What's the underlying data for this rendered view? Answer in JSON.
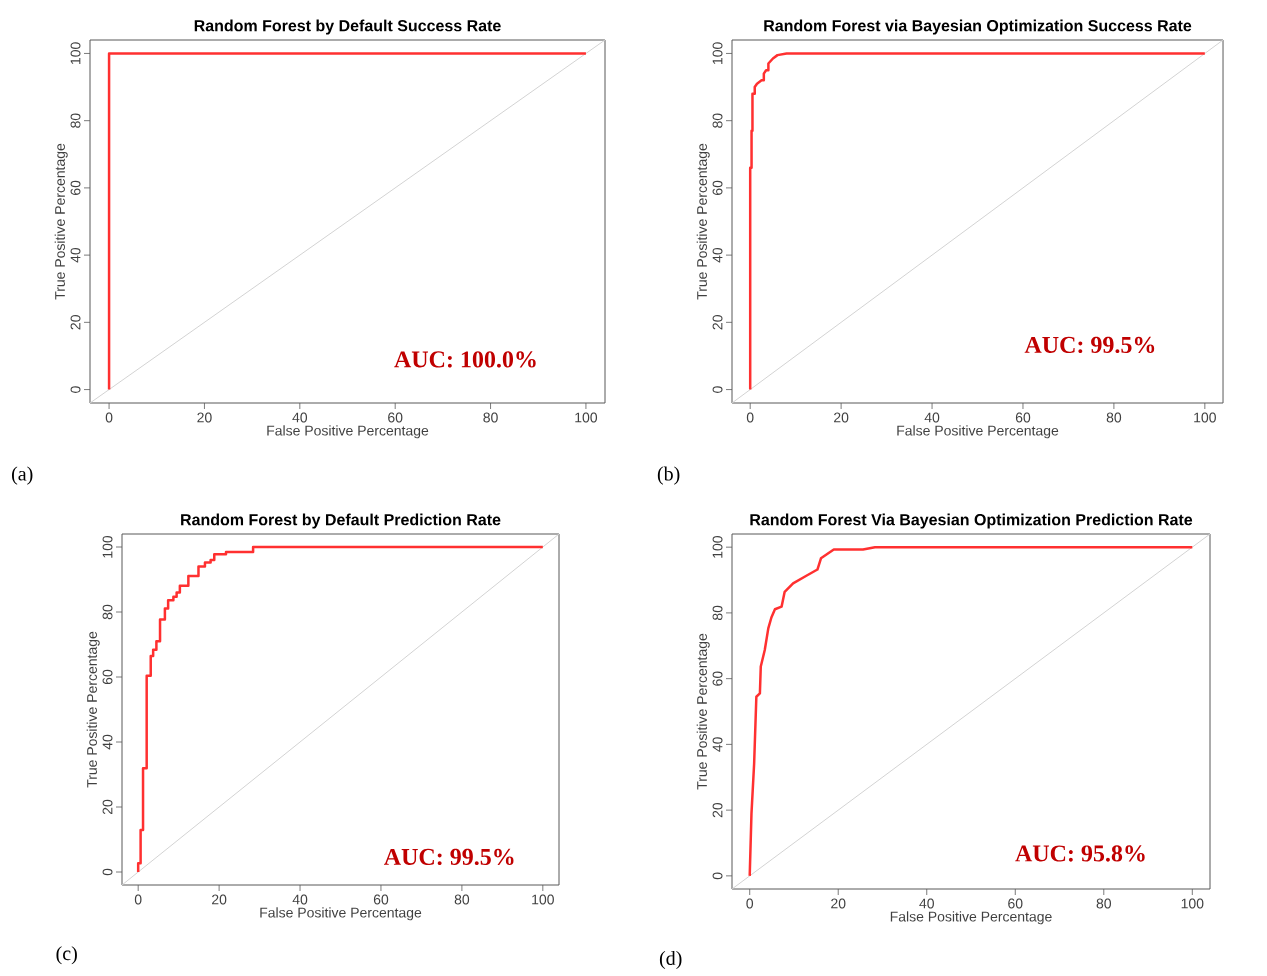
{
  "chart_data": [
    {
      "type": "line",
      "title": "Random Forest by Default Success Rate",
      "xlabel": "False Positive Percentage",
      "ylabel": "True Positive Percentage",
      "xlim": [
        -4,
        104
      ],
      "ylim": [
        -4,
        104
      ],
      "xticks": [
        0,
        20,
        40,
        60,
        80,
        100
      ],
      "yticks": [
        0,
        20,
        40,
        60,
        80,
        100
      ],
      "series": [
        {
          "color": "#d3d3d3",
          "x": [
            -4,
            104
          ],
          "values": [
            -4,
            104
          ]
        },
        {
          "color": "#ff3030",
          "x": [
            0,
            0,
            100
          ],
          "values": [
            0,
            100,
            100
          ]
        }
      ],
      "annotations": [
        "AUC: 100.0%",
        "(a)"
      ]
    },
    {
      "type": "line",
      "title": "Random Forest via Bayesian Optimization Success Rate",
      "xlabel": "False Positive Percentage",
      "ylabel": "True Positive Percentage",
      "xlim": [
        -4,
        104
      ],
      "ylim": [
        -4,
        104
      ],
      "xticks": [
        0,
        20,
        40,
        60,
        80,
        100
      ],
      "yticks": [
        0,
        20,
        40,
        60,
        80,
        100
      ],
      "series": [
        {
          "color": "#d3d3d3",
          "x": [
            -4,
            104
          ],
          "values": [
            -4,
            104
          ]
        },
        {
          "color": "#ff3030",
          "x": [
            0,
            0,
            0.3,
            0.3,
            0.5,
            0.5,
            1,
            1,
            1.5,
            2.5,
            3,
            3,
            3.5,
            4,
            4,
            5,
            6,
            8,
            100
          ],
          "values": [
            0,
            66,
            66,
            77,
            77,
            88,
            88,
            90,
            91,
            92,
            92,
            94,
            95,
            95,
            97,
            98.5,
            99.5,
            100,
            100
          ]
        }
      ],
      "annotations": [
        "AUC: 99.5%",
        "(b)"
      ]
    },
    {
      "type": "line",
      "title": "Random Forest by Default Prediction Rate",
      "xlabel": "False Positive Percentage",
      "ylabel": "True Positive Percentage",
      "xlim": [
        -4,
        104
      ],
      "ylim": [
        -4,
        104
      ],
      "xticks": [
        0,
        20,
        40,
        60,
        80,
        100
      ],
      "yticks": [
        0,
        20,
        40,
        60,
        80,
        100
      ],
      "series": [
        {
          "color": "#d3d3d3",
          "x": [
            -4,
            104
          ],
          "values": [
            -4,
            104
          ]
        },
        {
          "color": "#ff3030",
          "x": [
            0,
            0,
            0.6,
            0.6,
            1.2,
            1.2,
            2.1,
            2.1,
            3.1,
            3.1,
            3.7,
            3.7,
            4.5,
            4.5,
            5.4,
            5.4,
            6.6,
            6.6,
            7.4,
            7.4,
            8.7,
            8.7,
            9.5,
            9.5,
            10.3,
            10.3,
            12.4,
            12.4,
            14.9,
            14.9,
            16.5,
            16.5,
            17.9,
            17.9,
            18.8,
            18.8,
            21.7,
            21.7,
            28.4,
            28.4,
            100
          ],
          "values": [
            0,
            2.7,
            2.7,
            12.9,
            12.9,
            31.9,
            31.9,
            60.4,
            60.4,
            66.5,
            66.5,
            68.4,
            68.4,
            71,
            71,
            77.7,
            77.7,
            81.1,
            81.1,
            83.6,
            83.6,
            84.7,
            84.7,
            86,
            86,
            88.1,
            88.1,
            91.1,
            91.1,
            94,
            94,
            95.2,
            95.2,
            96,
            96,
            97.8,
            97.8,
            98.5,
            98.5,
            100,
            100
          ]
        }
      ],
      "annotations": [
        "AUC: 99.5%",
        "(c)"
      ]
    },
    {
      "type": "line",
      "title": "Random Forest Via Bayesian Optimization Prediction Rate",
      "xlabel": "False Positive Percentage",
      "ylabel": "True Positive Percentage",
      "xlim": [
        -4,
        104
      ],
      "ylim": [
        -4,
        104
      ],
      "xticks": [
        0,
        20,
        40,
        60,
        80,
        100
      ],
      "yticks": [
        0,
        20,
        40,
        60,
        80,
        100
      ],
      "series": [
        {
          "color": "#d3d3d3",
          "x": [
            -4,
            104
          ],
          "values": [
            -4,
            104
          ]
        },
        {
          "color": "#ff3030",
          "x": [
            0,
            0.4,
            1,
            1.5,
            2.3,
            2.5,
            3.4,
            4.2,
            4.9,
            5.7,
            7.2,
            7.9,
            9.8,
            12.8,
            15.3,
            16.1,
            19,
            25.6,
            28.3,
            100
          ],
          "values": [
            0,
            19,
            34.2,
            54.5,
            55.5,
            63.7,
            68.7,
            75.3,
            78.6,
            81.1,
            81.9,
            86.4,
            89,
            91.3,
            93.2,
            96.6,
            99.3,
            99.3,
            100,
            100
          ]
        }
      ],
      "annotations": [
        "AUC: 95.8%",
        "(d)"
      ]
    }
  ]
}
